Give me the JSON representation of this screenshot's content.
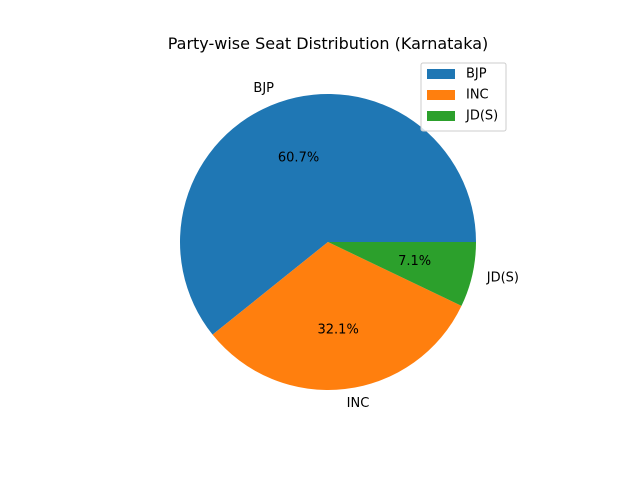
{
  "chart_data": {
    "type": "pie",
    "title": "Party-wise Seat Distribution (Karnataka)",
    "slices": [
      {
        "label": "BJP",
        "percent_label": "60.7%",
        "value": 60.7,
        "color": "#1f77b4"
      },
      {
        "label": "INC",
        "percent_label": "32.1%",
        "value": 32.1,
        "color": "#ff7f0e"
      },
      {
        "label": "JD(S)",
        "percent_label": "7.1%",
        "value": 7.1,
        "color": "#2ca02c"
      }
    ],
    "legend": {
      "placement": "top-right",
      "entries": [
        "BJP",
        "INC",
        "JD(S)"
      ]
    }
  }
}
